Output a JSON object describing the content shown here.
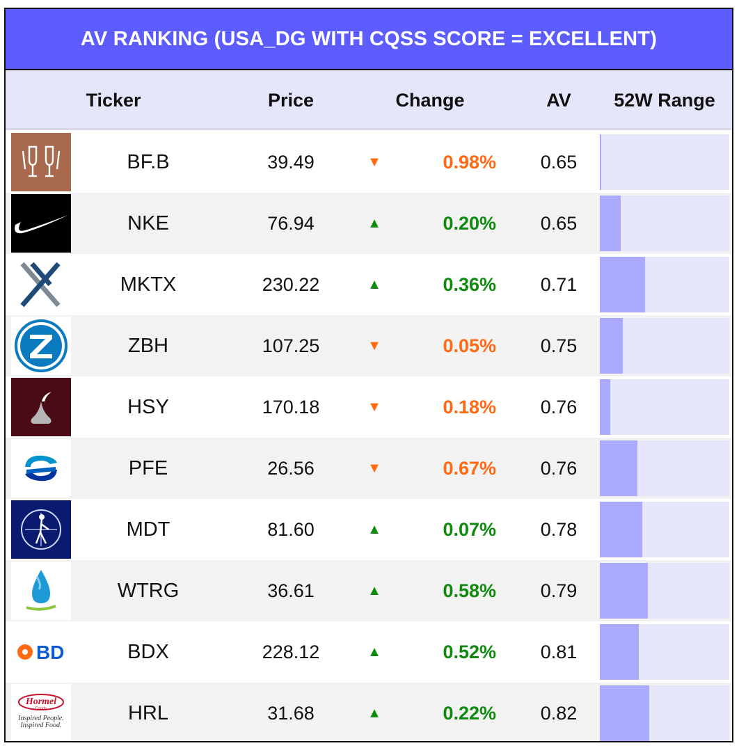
{
  "title": "AV RANKING (USA_DG WITH CQSS SCORE = EXCELLENT)",
  "columns": {
    "ticker": "Ticker",
    "price": "Price",
    "change": "Change",
    "av": "AV",
    "range": "52W Range"
  },
  "colors": {
    "title_bg": "#5c5cff",
    "header_bg": "#e6e6fa",
    "up": "#0f8a0f",
    "down": "#ff6a13",
    "range_track": "#e6e6fa",
    "range_fill": "#aaaaff"
  },
  "logos": {
    "HRL": {
      "brand": "Hormel",
      "brand2": "Foods",
      "tagline1": "Inspired People.",
      "tagline2": "Inspired Food."
    },
    "BDX": {
      "text": "BD"
    }
  },
  "chart_data": {
    "type": "table",
    "title": "AV RANKING (USA_DG WITH CQSS SCORE = EXCELLENT)",
    "rows": [
      {
        "ticker": "BF.B",
        "logo": "glasses-icon",
        "price": "39.49",
        "direction": "down",
        "change": "0.98%",
        "av": "0.65",
        "range_pct": 0.01
      },
      {
        "ticker": "NKE",
        "logo": "swoosh-icon",
        "price": "76.94",
        "direction": "up",
        "change": "0.20%",
        "av": "0.65",
        "range_pct": 0.16
      },
      {
        "ticker": "MKTX",
        "logo": "mktx-x-icon",
        "price": "230.22",
        "direction": "up",
        "change": "0.36%",
        "av": "0.71",
        "range_pct": 0.35
      },
      {
        "ticker": "ZBH",
        "logo": "zimmer-z-icon",
        "price": "107.25",
        "direction": "down",
        "change": "0.05%",
        "av": "0.75",
        "range_pct": 0.18
      },
      {
        "ticker": "HSY",
        "logo": "kiss-icon",
        "price": "170.18",
        "direction": "down",
        "change": "0.18%",
        "av": "0.76",
        "range_pct": 0.08
      },
      {
        "ticker": "PFE",
        "logo": "pfizer-icon",
        "price": "26.56",
        "direction": "down",
        "change": "0.67%",
        "av": "0.76",
        "range_pct": 0.29
      },
      {
        "ticker": "MDT",
        "logo": "medtronic-icon",
        "price": "81.60",
        "direction": "up",
        "change": "0.07%",
        "av": "0.78",
        "range_pct": 0.33
      },
      {
        "ticker": "WTRG",
        "logo": "water-drop-icon",
        "price": "36.61",
        "direction": "up",
        "change": "0.58%",
        "av": "0.79",
        "range_pct": 0.37
      },
      {
        "ticker": "BDX",
        "logo": "bd-icon",
        "price": "228.12",
        "direction": "up",
        "change": "0.52%",
        "av": "0.81",
        "range_pct": 0.3
      },
      {
        "ticker": "HRL",
        "logo": "hormel-icon",
        "price": "31.68",
        "direction": "up",
        "change": "0.22%",
        "av": "0.82",
        "range_pct": 0.38
      }
    ]
  }
}
